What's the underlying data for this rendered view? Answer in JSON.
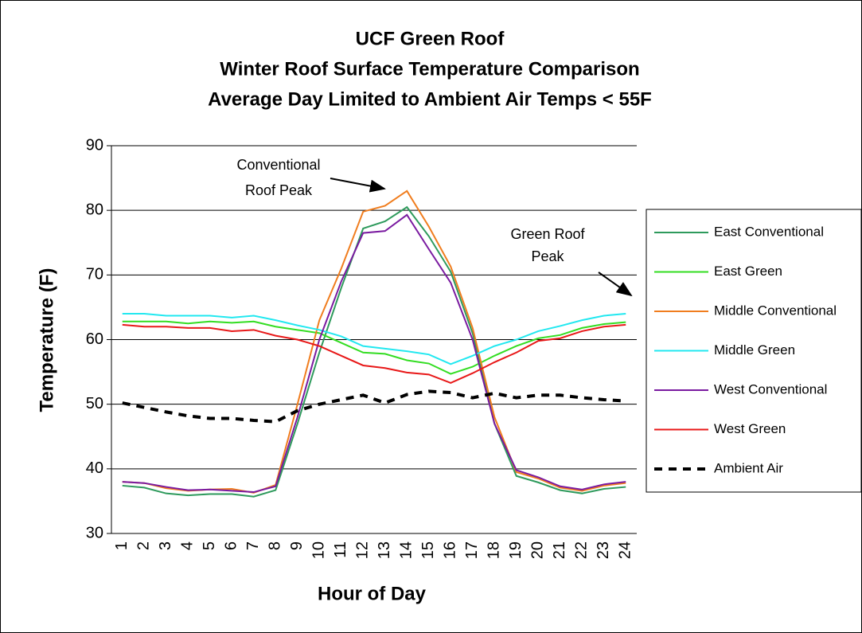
{
  "chart_data": {
    "type": "line",
    "title": "UCF Green Roof",
    "subtitle": [
      "Winter Roof Surface Temperature Comparison",
      "Average Day Limited to Ambient Air Temps < 55F"
    ],
    "x_label": "Hour of Day",
    "y_label": "Temperature (F)",
    "categories": [
      "1",
      "2",
      "3",
      "4",
      "5",
      "6",
      "7",
      "8",
      "9",
      "10",
      "11",
      "12",
      "13",
      "14",
      "15",
      "16",
      "17",
      "18",
      "19",
      "20",
      "21",
      "22",
      "23",
      "24"
    ],
    "series": [
      {
        "name": "East Conventional",
        "color": "#2e9a5c",
        "values": [
          37.4,
          37.1,
          36.2,
          35.9,
          36.1,
          36.1,
          35.7,
          36.7,
          47,
          58,
          68,
          77.2,
          78.3,
          80.5,
          76,
          70.5,
          61,
          47,
          38.9,
          37.9,
          36.7,
          36.2,
          36.9,
          37.2
        ]
      },
      {
        "name": "East Green",
        "color": "#33dd22",
        "values": [
          62.8,
          62.8,
          62.8,
          62.5,
          62.8,
          62.6,
          62.8,
          62,
          61.5,
          61,
          59.5,
          58,
          57.8,
          56.8,
          56.3,
          54.7,
          55.8,
          57.5,
          59,
          60.2,
          60.7,
          61.8,
          62.4,
          62.7
        ]
      },
      {
        "name": "Middle Conventional",
        "color": "#f07d1e",
        "values": [
          38,
          37.8,
          37,
          36.6,
          36.8,
          36.9,
          36.3,
          37.5,
          50,
          63,
          71,
          79.8,
          80.7,
          83,
          77.5,
          71.3,
          61.8,
          48,
          39.5,
          38.5,
          37.1,
          36.6,
          37.4,
          37.8
        ]
      },
      {
        "name": "Middle Green",
        "color": "#22e8f0",
        "values": [
          64,
          64,
          63.7,
          63.7,
          63.7,
          63.4,
          63.7,
          63,
          62.2,
          61.5,
          60.5,
          59,
          58.6,
          58.2,
          57.7,
          56.2,
          57.5,
          59,
          60,
          61.3,
          62.1,
          63,
          63.7,
          64
        ]
      },
      {
        "name": "West Conventional",
        "color": "#7a1aa0",
        "values": [
          38,
          37.8,
          37.2,
          36.7,
          36.8,
          36.6,
          36.4,
          37.3,
          48,
          60,
          69,
          76.5,
          76.8,
          79.3,
          74,
          68.8,
          60,
          47,
          39.8,
          38.7,
          37.3,
          36.8,
          37.6,
          38
        ]
      },
      {
        "name": "West Green",
        "color": "#e81818",
        "values": [
          62.3,
          62,
          62,
          61.8,
          61.8,
          61.3,
          61.5,
          60.6,
          60,
          59,
          57.5,
          56,
          55.6,
          54.9,
          54.6,
          53.3,
          54.8,
          56.5,
          58,
          59.8,
          60.2,
          61.3,
          62,
          62.3
        ]
      },
      {
        "name": "Ambient Air",
        "color": "#000000",
        "dashed": true,
        "values": [
          50.2,
          49.5,
          48.8,
          48.2,
          47.8,
          47.8,
          47.5,
          47.3,
          49,
          50,
          50.7,
          51.4,
          50.2,
          51.5,
          52,
          51.8,
          51,
          51.7,
          51,
          51.4,
          51.4,
          51,
          50.7,
          50.5
        ]
      }
    ],
    "ylim": [
      30,
      90
    ],
    "yticks": [
      30,
      40,
      50,
      60,
      70,
      80,
      90
    ],
    "grid": true,
    "legend": "right",
    "annotations": [
      {
        "text": [
          "Conventional",
          "Roof Peak"
        ]
      },
      {
        "text": [
          "Green Roof",
          "Peak"
        ]
      }
    ]
  }
}
